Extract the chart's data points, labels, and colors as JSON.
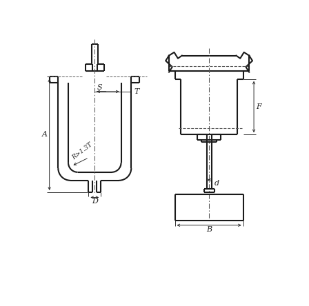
{
  "bg_color": "#ffffff",
  "line_color": "#1a1a1a",
  "dim_color": "#222222",
  "dash_color": "#555555",
  "fig_width": 4.48,
  "fig_height": 4.44,
  "dpi": 100,
  "labels": {
    "A": "A",
    "S": "S",
    "T": "T",
    "D": "D",
    "R": "R>1.3T",
    "F": "F",
    "d": "d",
    "B": "B"
  }
}
